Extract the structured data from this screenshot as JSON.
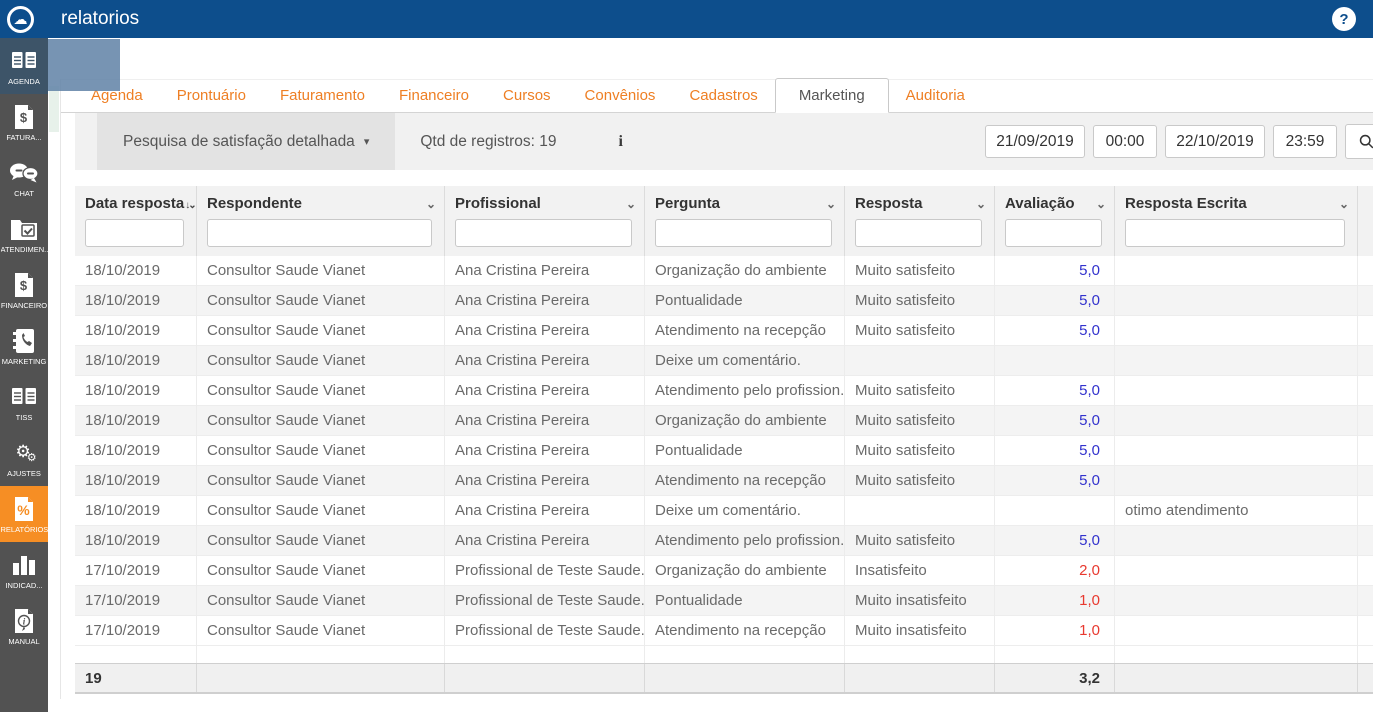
{
  "topbar": {
    "title": "relatorios",
    "logo_icon": "cloud-icon",
    "help_label": "?"
  },
  "sidebar": {
    "items": [
      {
        "label": "AGENDA",
        "icon": "agenda-pages-icon",
        "state": "highlighted"
      },
      {
        "label": "FATURA...",
        "icon": "invoice-dollar-icon",
        "state": "normal"
      },
      {
        "label": "CHAT",
        "icon": "chat-bubbles-icon",
        "state": "normal"
      },
      {
        "label": "ATENDIMEN...",
        "icon": "folder-check-icon",
        "state": "normal"
      },
      {
        "label": "FINANCEIRO",
        "icon": "finance-dollar-icon",
        "state": "normal"
      },
      {
        "label": "MARKETING",
        "icon": "contacts-phone-icon",
        "state": "normal"
      },
      {
        "label": "TISS",
        "icon": "tiss-pages-icon",
        "state": "normal"
      },
      {
        "label": "AJUSTES",
        "icon": "gears-icon",
        "state": "normal"
      },
      {
        "label": "RELATÓRIOS",
        "icon": "report-percent-icon",
        "state": "active"
      },
      {
        "label": "INDICAD...",
        "icon": "bar-chart-icon",
        "state": "normal"
      },
      {
        "label": "MANUAL",
        "icon": "manual-doc-icon",
        "state": "normal"
      }
    ]
  },
  "tabs": {
    "items": [
      {
        "label": "Agenda",
        "active": false
      },
      {
        "label": "Prontuário",
        "active": false
      },
      {
        "label": "Faturamento",
        "active": false
      },
      {
        "label": "Financeiro",
        "active": false
      },
      {
        "label": "Cursos",
        "active": false
      },
      {
        "label": "Convênios",
        "active": false
      },
      {
        "label": "Cadastros",
        "active": false
      },
      {
        "label": "Marketing",
        "active": true
      },
      {
        "label": "Auditoria",
        "active": false
      }
    ]
  },
  "toolbar": {
    "report_selector_label": "Pesquisa de satisfação detalhada",
    "dropdown_caret": "▾",
    "records_count_label": "Qtd de registros: 19",
    "info_icon_glyph": "i",
    "date_from": "21/09/2019",
    "time_from": "00:00",
    "date_to": "22/10/2019",
    "time_to": "23:59",
    "search_icon": "magnifier-icon"
  },
  "table": {
    "columns": [
      {
        "label": "Data resposta",
        "sorted": true
      },
      {
        "label": "Respondente",
        "sorted": false
      },
      {
        "label": "Profissional",
        "sorted": false
      },
      {
        "label": "Pergunta",
        "sorted": false
      },
      {
        "label": "Resposta",
        "sorted": false
      },
      {
        "label": "Avaliação",
        "sorted": false
      },
      {
        "label": "Resposta Escrita",
        "sorted": false
      }
    ],
    "rows": [
      {
        "data_resposta": "18/10/2019",
        "respondente": "Consultor Saude Vianet",
        "profissional": "Ana Cristina Pereira",
        "pergunta": "Organização do ambiente",
        "resposta": "Muito satisfeito",
        "avaliacao": "5,0",
        "avaliacao_color": "blue",
        "resposta_escrita": ""
      },
      {
        "data_resposta": "18/10/2019",
        "respondente": "Consultor Saude Vianet",
        "profissional": "Ana Cristina Pereira",
        "pergunta": "Pontualidade",
        "resposta": "Muito satisfeito",
        "avaliacao": "5,0",
        "avaliacao_color": "blue",
        "resposta_escrita": ""
      },
      {
        "data_resposta": "18/10/2019",
        "respondente": "Consultor Saude Vianet",
        "profissional": "Ana Cristina Pereira",
        "pergunta": "Atendimento na recepção",
        "resposta": "Muito satisfeito",
        "avaliacao": "5,0",
        "avaliacao_color": "blue",
        "resposta_escrita": ""
      },
      {
        "data_resposta": "18/10/2019",
        "respondente": "Consultor Saude Vianet",
        "profissional": "Ana Cristina Pereira",
        "pergunta": "Deixe um comentário.",
        "resposta": "",
        "avaliacao": "",
        "avaliacao_color": "",
        "resposta_escrita": ""
      },
      {
        "data_resposta": "18/10/2019",
        "respondente": "Consultor Saude Vianet",
        "profissional": "Ana Cristina Pereira",
        "pergunta": "Atendimento pelo profission...",
        "resposta": "Muito satisfeito",
        "avaliacao": "5,0",
        "avaliacao_color": "blue",
        "resposta_escrita": ""
      },
      {
        "data_resposta": "18/10/2019",
        "respondente": "Consultor Saude Vianet",
        "profissional": "Ana Cristina Pereira",
        "pergunta": "Organização do ambiente",
        "resposta": "Muito satisfeito",
        "avaliacao": "5,0",
        "avaliacao_color": "blue",
        "resposta_escrita": ""
      },
      {
        "data_resposta": "18/10/2019",
        "respondente": "Consultor Saude Vianet",
        "profissional": "Ana Cristina Pereira",
        "pergunta": "Pontualidade",
        "resposta": "Muito satisfeito",
        "avaliacao": "5,0",
        "avaliacao_color": "blue",
        "resposta_escrita": ""
      },
      {
        "data_resposta": "18/10/2019",
        "respondente": "Consultor Saude Vianet",
        "profissional": "Ana Cristina Pereira",
        "pergunta": "Atendimento na recepção",
        "resposta": "Muito satisfeito",
        "avaliacao": "5,0",
        "avaliacao_color": "blue",
        "resposta_escrita": ""
      },
      {
        "data_resposta": "18/10/2019",
        "respondente": "Consultor Saude Vianet",
        "profissional": "Ana Cristina Pereira",
        "pergunta": "Deixe um comentário.",
        "resposta": "",
        "avaliacao": "",
        "avaliacao_color": "",
        "resposta_escrita": "otimo atendimento"
      },
      {
        "data_resposta": "18/10/2019",
        "respondente": "Consultor Saude Vianet",
        "profissional": "Ana Cristina Pereira",
        "pergunta": "Atendimento pelo profission...",
        "resposta": "Muito satisfeito",
        "avaliacao": "5,0",
        "avaliacao_color": "blue",
        "resposta_escrita": ""
      },
      {
        "data_resposta": "17/10/2019",
        "respondente": "Consultor Saude Vianet",
        "profissional": "Profissional de Teste Saude...",
        "pergunta": "Organização do ambiente",
        "resposta": "Insatisfeito",
        "avaliacao": "2,0",
        "avaliacao_color": "red",
        "resposta_escrita": ""
      },
      {
        "data_resposta": "17/10/2019",
        "respondente": "Consultor Saude Vianet",
        "profissional": "Profissional de Teste Saude...",
        "pergunta": "Pontualidade",
        "resposta": "Muito insatisfeito",
        "avaliacao": "1,0",
        "avaliacao_color": "red",
        "resposta_escrita": ""
      },
      {
        "data_resposta": "17/10/2019",
        "respondente": "Consultor Saude Vianet",
        "profissional": "Profissional de Teste Saude...",
        "pergunta": "Atendimento na recepção",
        "resposta": "Muito insatisfeito",
        "avaliacao": "1,0",
        "avaliacao_color": "red",
        "resposta_escrita": ""
      }
    ],
    "footer": {
      "count": "19",
      "avg_avaliacao": "3,2"
    }
  },
  "colors": {
    "topbar_blue": "#0d4e8c",
    "sidebar_gray": "#525252",
    "active_orange": "#f68e24",
    "tab_orange": "#ee7f24",
    "rating_blue": "#3232cd",
    "rating_red": "#e8392f"
  }
}
